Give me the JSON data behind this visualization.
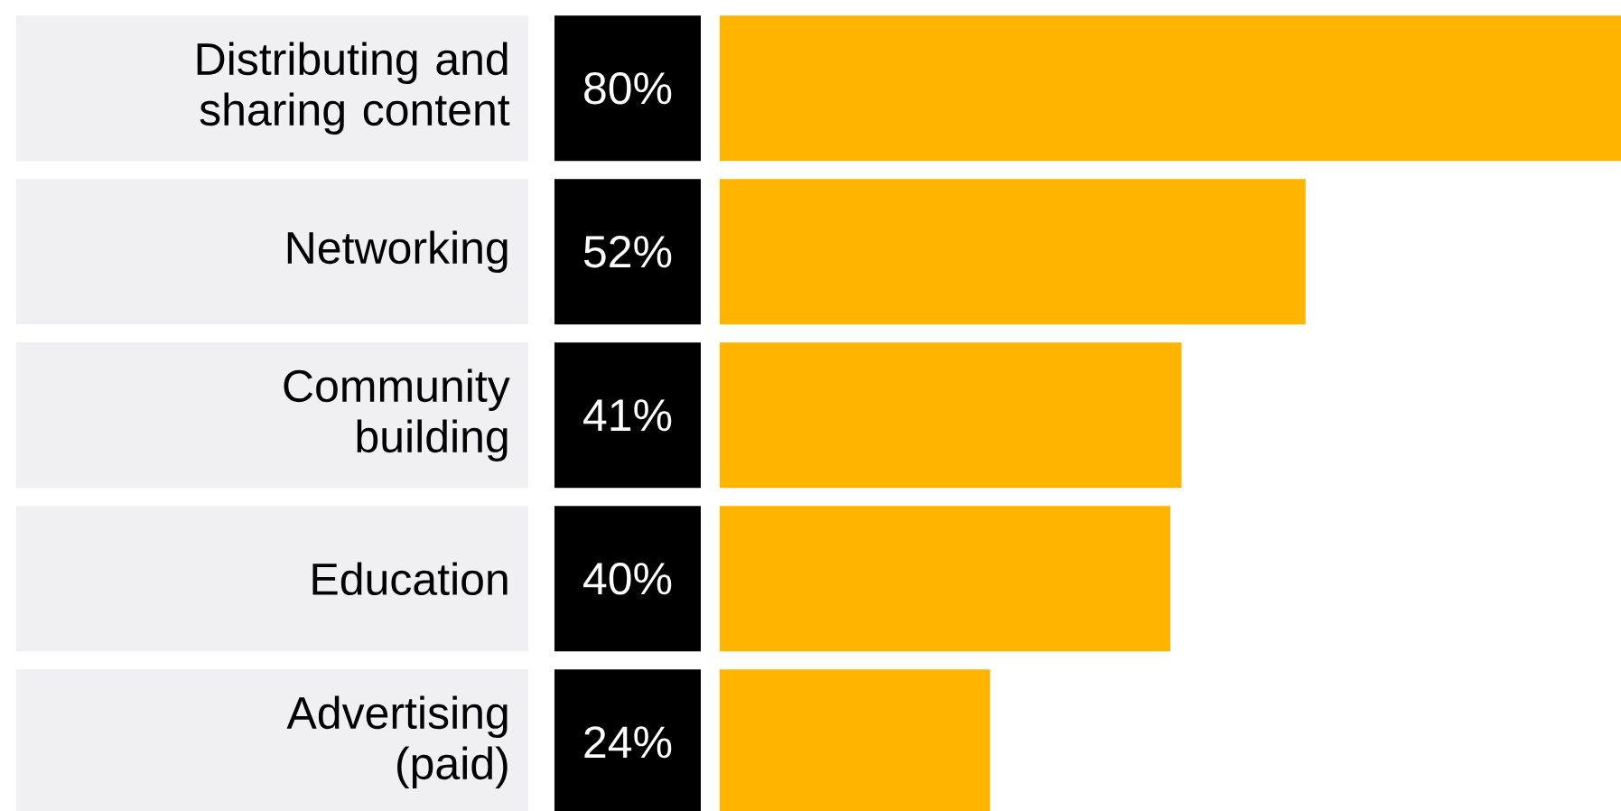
{
  "chart_data": {
    "type": "bar",
    "orientation": "horizontal",
    "categories": [
      "Distributing and sharing content",
      "Networking",
      "Community building",
      "Education",
      "Advertising (paid)"
    ],
    "values": [
      80,
      52,
      41,
      40,
      24
    ],
    "value_labels": [
      "80%",
      "52%",
      "41%",
      "40%",
      "24%"
    ],
    "color": "#ffb400"
  }
}
